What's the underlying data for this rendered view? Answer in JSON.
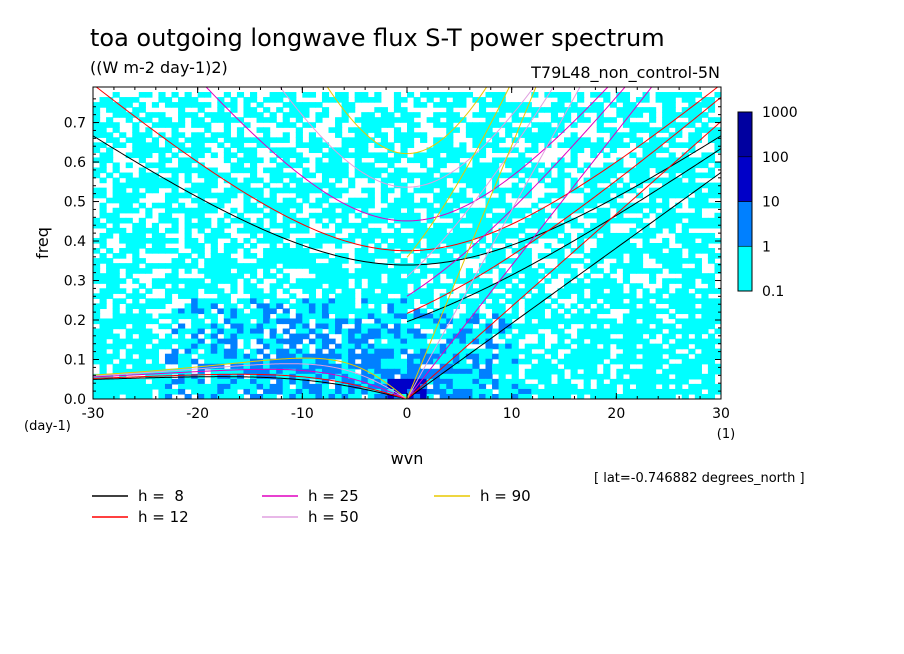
{
  "chart_data": {
    "type": "heatmap",
    "title": "toa outgoing longwave flux S-T power spectrum",
    "units": "((W m-2 day-1)2)",
    "run_label": "T79L48_non_control-5N",
    "xlabel": "wvn",
    "ylabel": "freq",
    "x_unit_label": "(1)",
    "y_unit_label": "(day-1)",
    "xlim": [
      -30,
      30
    ],
    "ylim": [
      0,
      0.79
    ],
    "x_ticks": [
      -30,
      -20,
      -10,
      0,
      10,
      20,
      30
    ],
    "x_tick_labels": [
      "-30",
      "-20",
      "-10",
      "0",
      "10",
      "20",
      "30"
    ],
    "y_ticks": [
      0.0,
      0.1,
      0.2,
      0.3,
      0.4,
      0.5,
      0.6,
      0.7
    ],
    "y_tick_labels": [
      "0.0",
      "0.1",
      "0.2",
      "0.3",
      "0.4",
      "0.5",
      "0.6",
      "0.7"
    ],
    "footnote": "[ lat=-0.746882 degrees_north ]",
    "colorbar": {
      "levels": [
        0.1,
        1,
        10,
        100,
        1000
      ],
      "level_labels": [
        "0.1",
        "1",
        "10",
        "100",
        "1000"
      ],
      "colors": [
        "#00ffff",
        "#0080ff",
        "#0000c8",
        "#0000a0",
        "#4b00a0"
      ]
    },
    "dispersion_curves": [
      {
        "label": "h =  8",
        "h": 8,
        "color": "#000000"
      },
      {
        "label": "h = 12",
        "h": 12,
        "color": "#ff0000"
      },
      {
        "label": "h = 25",
        "h": 25,
        "color": "#e000c0"
      },
      {
        "label": "h = 50",
        "h": 50,
        "color": "#e0a0e0"
      },
      {
        "label": "h = 90",
        "h": 90,
        "color": "#e8c800"
      }
    ],
    "power_regions": [
      {
        "level": "0.1-1",
        "description": "broad background coverage across all wavenumbers, freq 0 to 0.77"
      },
      {
        "level": "1-10",
        "description": "westward wavenumbers -22 to 0, freq 0 to 0.25; eastward 0 to 12 near freq 0 to 0.2"
      },
      {
        "level": "10-100",
        "description": "near wavenumber 0, freq 0 to 0.05"
      }
    ]
  }
}
